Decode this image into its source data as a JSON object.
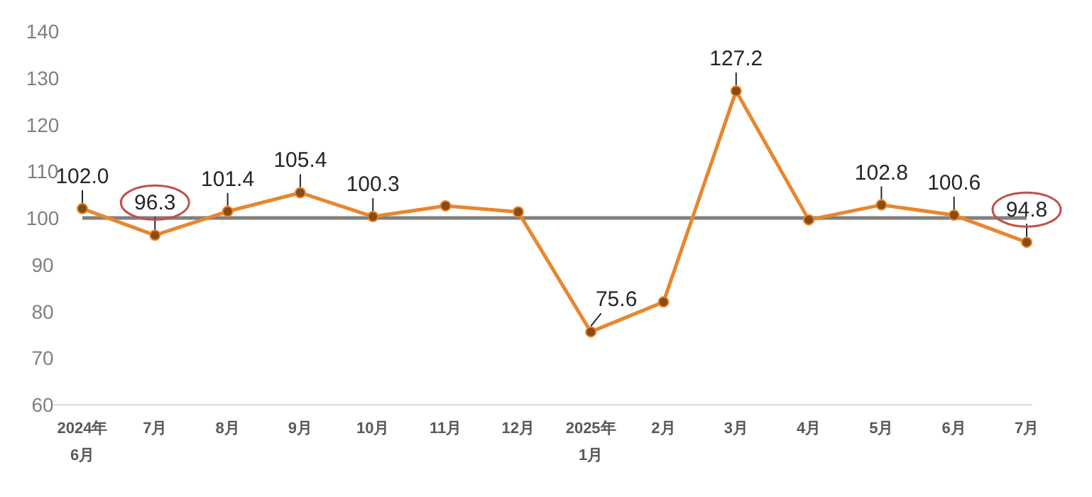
{
  "chart_data": {
    "type": "line",
    "categories": [
      "2024年\n6月",
      "7月",
      "8月",
      "9月",
      "10月",
      "11月",
      "12月",
      "2025年\n1月",
      "2月",
      "3月",
      "4月",
      "5月",
      "6月",
      "7月"
    ],
    "series": [
      {
        "color": "#e8862e",
        "values": [
          102.0,
          96.3,
          101.4,
          105.4,
          100.3,
          102.6,
          101.3,
          75.6,
          82.0,
          127.2,
          99.6,
          102.8,
          100.6,
          94.8
        ],
        "value_labels": [
          "102.0",
          "96.3",
          "101.4",
          "105.4",
          "100.3",
          null,
          null,
          "75.6",
          null,
          "127.2",
          null,
          "102.8",
          "100.6",
          "94.8"
        ]
      }
    ],
    "ylim": [
      60,
      140
    ],
    "yticks": [
      60,
      70,
      80,
      90,
      100,
      110,
      120,
      130,
      140
    ],
    "ref_lines": [
      {
        "axis": "y",
        "value": 100,
        "color": "#7f7f7f"
      }
    ],
    "marker": "circle",
    "line_style": "solid"
  }
}
